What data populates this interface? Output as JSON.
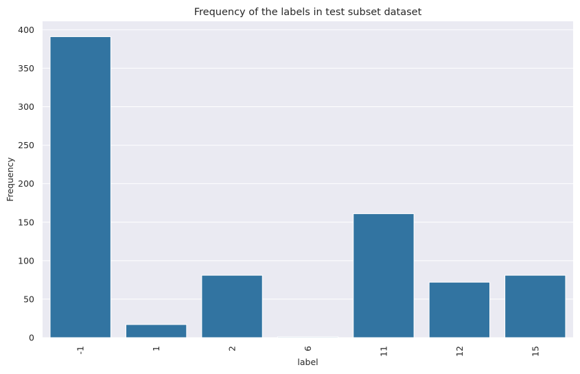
{
  "chart_data": {
    "type": "bar",
    "title": "Frequency of the labels in test subset dataset",
    "xlabel": "label",
    "ylabel": "Frequency",
    "categories": [
      "-1",
      "1",
      "2",
      "6",
      "11",
      "12",
      "15"
    ],
    "values": [
      391,
      17,
      81,
      1,
      161,
      72,
      81
    ],
    "ylim": [
      0,
      411
    ],
    "yticks": [
      0,
      50,
      100,
      150,
      200,
      250,
      300,
      350,
      400
    ],
    "grid": true,
    "bar_color": "#3274a1",
    "background_color": "#eaeaf2",
    "grid_color": "#ffffff"
  }
}
